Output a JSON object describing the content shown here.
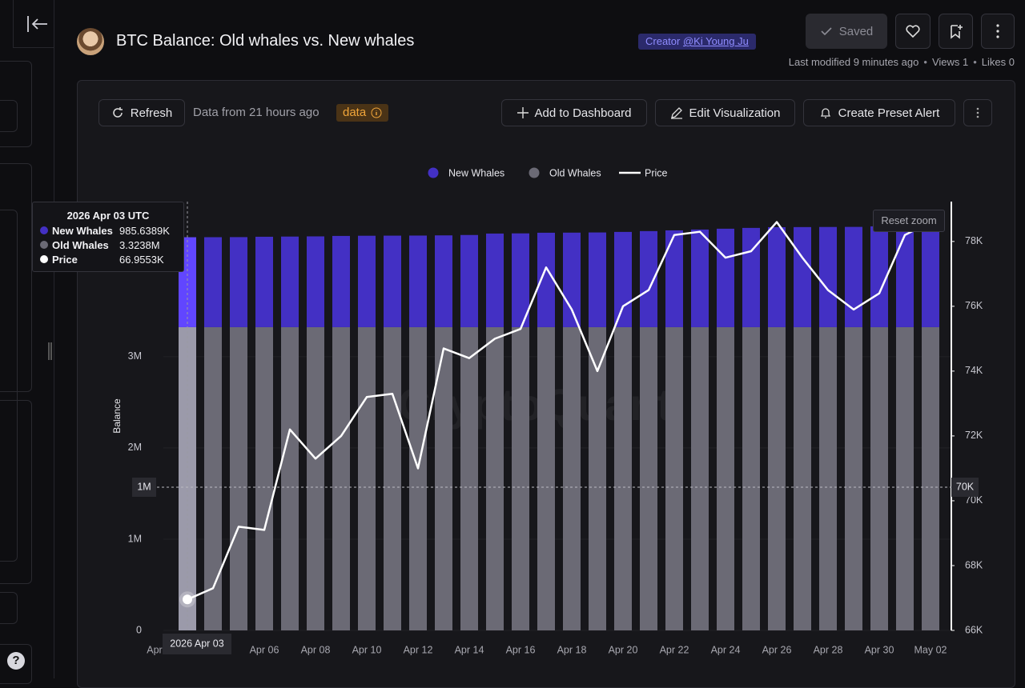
{
  "sidebar": {
    "help": "?"
  },
  "header": {
    "title": "BTC Balance: Old whales vs. New whales",
    "creator_label": "Creator",
    "creator_name": "@Ki Young Ju",
    "saved": "Saved",
    "meta": [
      "Last modified 9 minutes ago",
      "Views 1",
      "Likes 0"
    ]
  },
  "toolbar": {
    "refresh": "Refresh",
    "freshness": "Data from 21 hours ago",
    "badge": "data",
    "add": "Add to Dashboard",
    "edit": "Edit Visualization",
    "alert": "Create Preset Alert"
  },
  "chart_data": {
    "type": "bar",
    "stacked": true,
    "y_label": "Balance",
    "watermark": "CryptoQuant",
    "reset_zoom": "Reset zoom",
    "cut_label": "Apr",
    "categories": [
      null,
      null,
      null,
      "Apr 06",
      null,
      "Apr 08",
      null,
      "Apr 10",
      null,
      "Apr 12",
      null,
      "Apr 14",
      null,
      "Apr 16",
      null,
      "Apr 18",
      null,
      "Apr 20",
      null,
      "Apr 22",
      null,
      "Apr 24",
      null,
      "Apr 26",
      null,
      "Apr 28",
      null,
      "Apr 30",
      null,
      "May 02"
    ],
    "series": [
      {
        "name": "New Whales",
        "color": "#4330c4",
        "values": [
          985638.9,
          986000,
          987000,
          991000,
          993000,
          995000,
          1000000,
          1002000,
          1003000,
          1004000,
          1006000,
          1010000,
          1026000,
          1028000,
          1035000,
          1036000,
          1038000,
          1044000,
          1053000,
          1061000,
          1070000,
          1079000,
          1088000,
          1096000,
          1097000,
          1098000,
          1099000,
          1105000,
          1114000,
          1122000
        ]
      },
      {
        "name": "Old Whales",
        "color": "#6b6a75",
        "values": [
          3323800,
          3323800,
          3323800,
          3323800,
          3323800,
          3323800,
          3323800,
          3323800,
          3323800,
          3323800,
          3323800,
          3323800,
          3323800,
          3323800,
          3323800,
          3323800,
          3323800,
          3323800,
          3323800,
          3323800,
          3323800,
          3323800,
          3323800,
          3323800,
          3323800,
          3323800,
          3323800,
          3323800,
          3323800,
          3323800
        ]
      },
      {
        "name": "Price",
        "color": "#ffffff",
        "type": "line",
        "axis": "y2",
        "values": [
          66955.3,
          67300,
          69200,
          69100,
          72200,
          71300,
          72000,
          73200,
          73300,
          71000,
          74700,
          74400,
          75000,
          75300,
          77200,
          75900,
          74000,
          76000,
          76500,
          78200,
          78300,
          77500,
          77700,
          78600,
          77500,
          76500,
          75900,
          76400,
          78200,
          78600
        ]
      }
    ],
    "ylim": [
      0,
      4700000
    ],
    "yticks": [
      {
        "value": 0,
        "label": "0"
      },
      {
        "value": 1000000,
        "label": "1M"
      },
      {
        "value": 2000000,
        "label": "2M"
      },
      {
        "value": 3000000,
        "label": "3M"
      }
    ],
    "y2lim": [
      66000,
      79230
    ],
    "y2ticks": [
      {
        "value": 66000,
        "label": "66K"
      },
      {
        "value": 68000,
        "label": "68K"
      },
      {
        "value": 70000,
        "label": "70K"
      },
      {
        "value": 72000,
        "label": "72K"
      },
      {
        "value": 74000,
        "label": "74K"
      },
      {
        "value": 76000,
        "label": "76K"
      },
      {
        "value": 78000,
        "label": "78K"
      }
    ],
    "grid": true,
    "legend": "top",
    "tooltip": {
      "title": "2026 Apr 03 UTC",
      "rows": [
        {
          "name": "New Whales",
          "value": "985.6389K"
        },
        {
          "name": "Old Whales",
          "value": "3.3238M"
        },
        {
          "name": "Price",
          "value": "66.9553K"
        }
      ]
    },
    "crosshair": {
      "x_label": "2026 Apr 03",
      "y_label": "1M",
      "y2_label": "70K"
    }
  }
}
